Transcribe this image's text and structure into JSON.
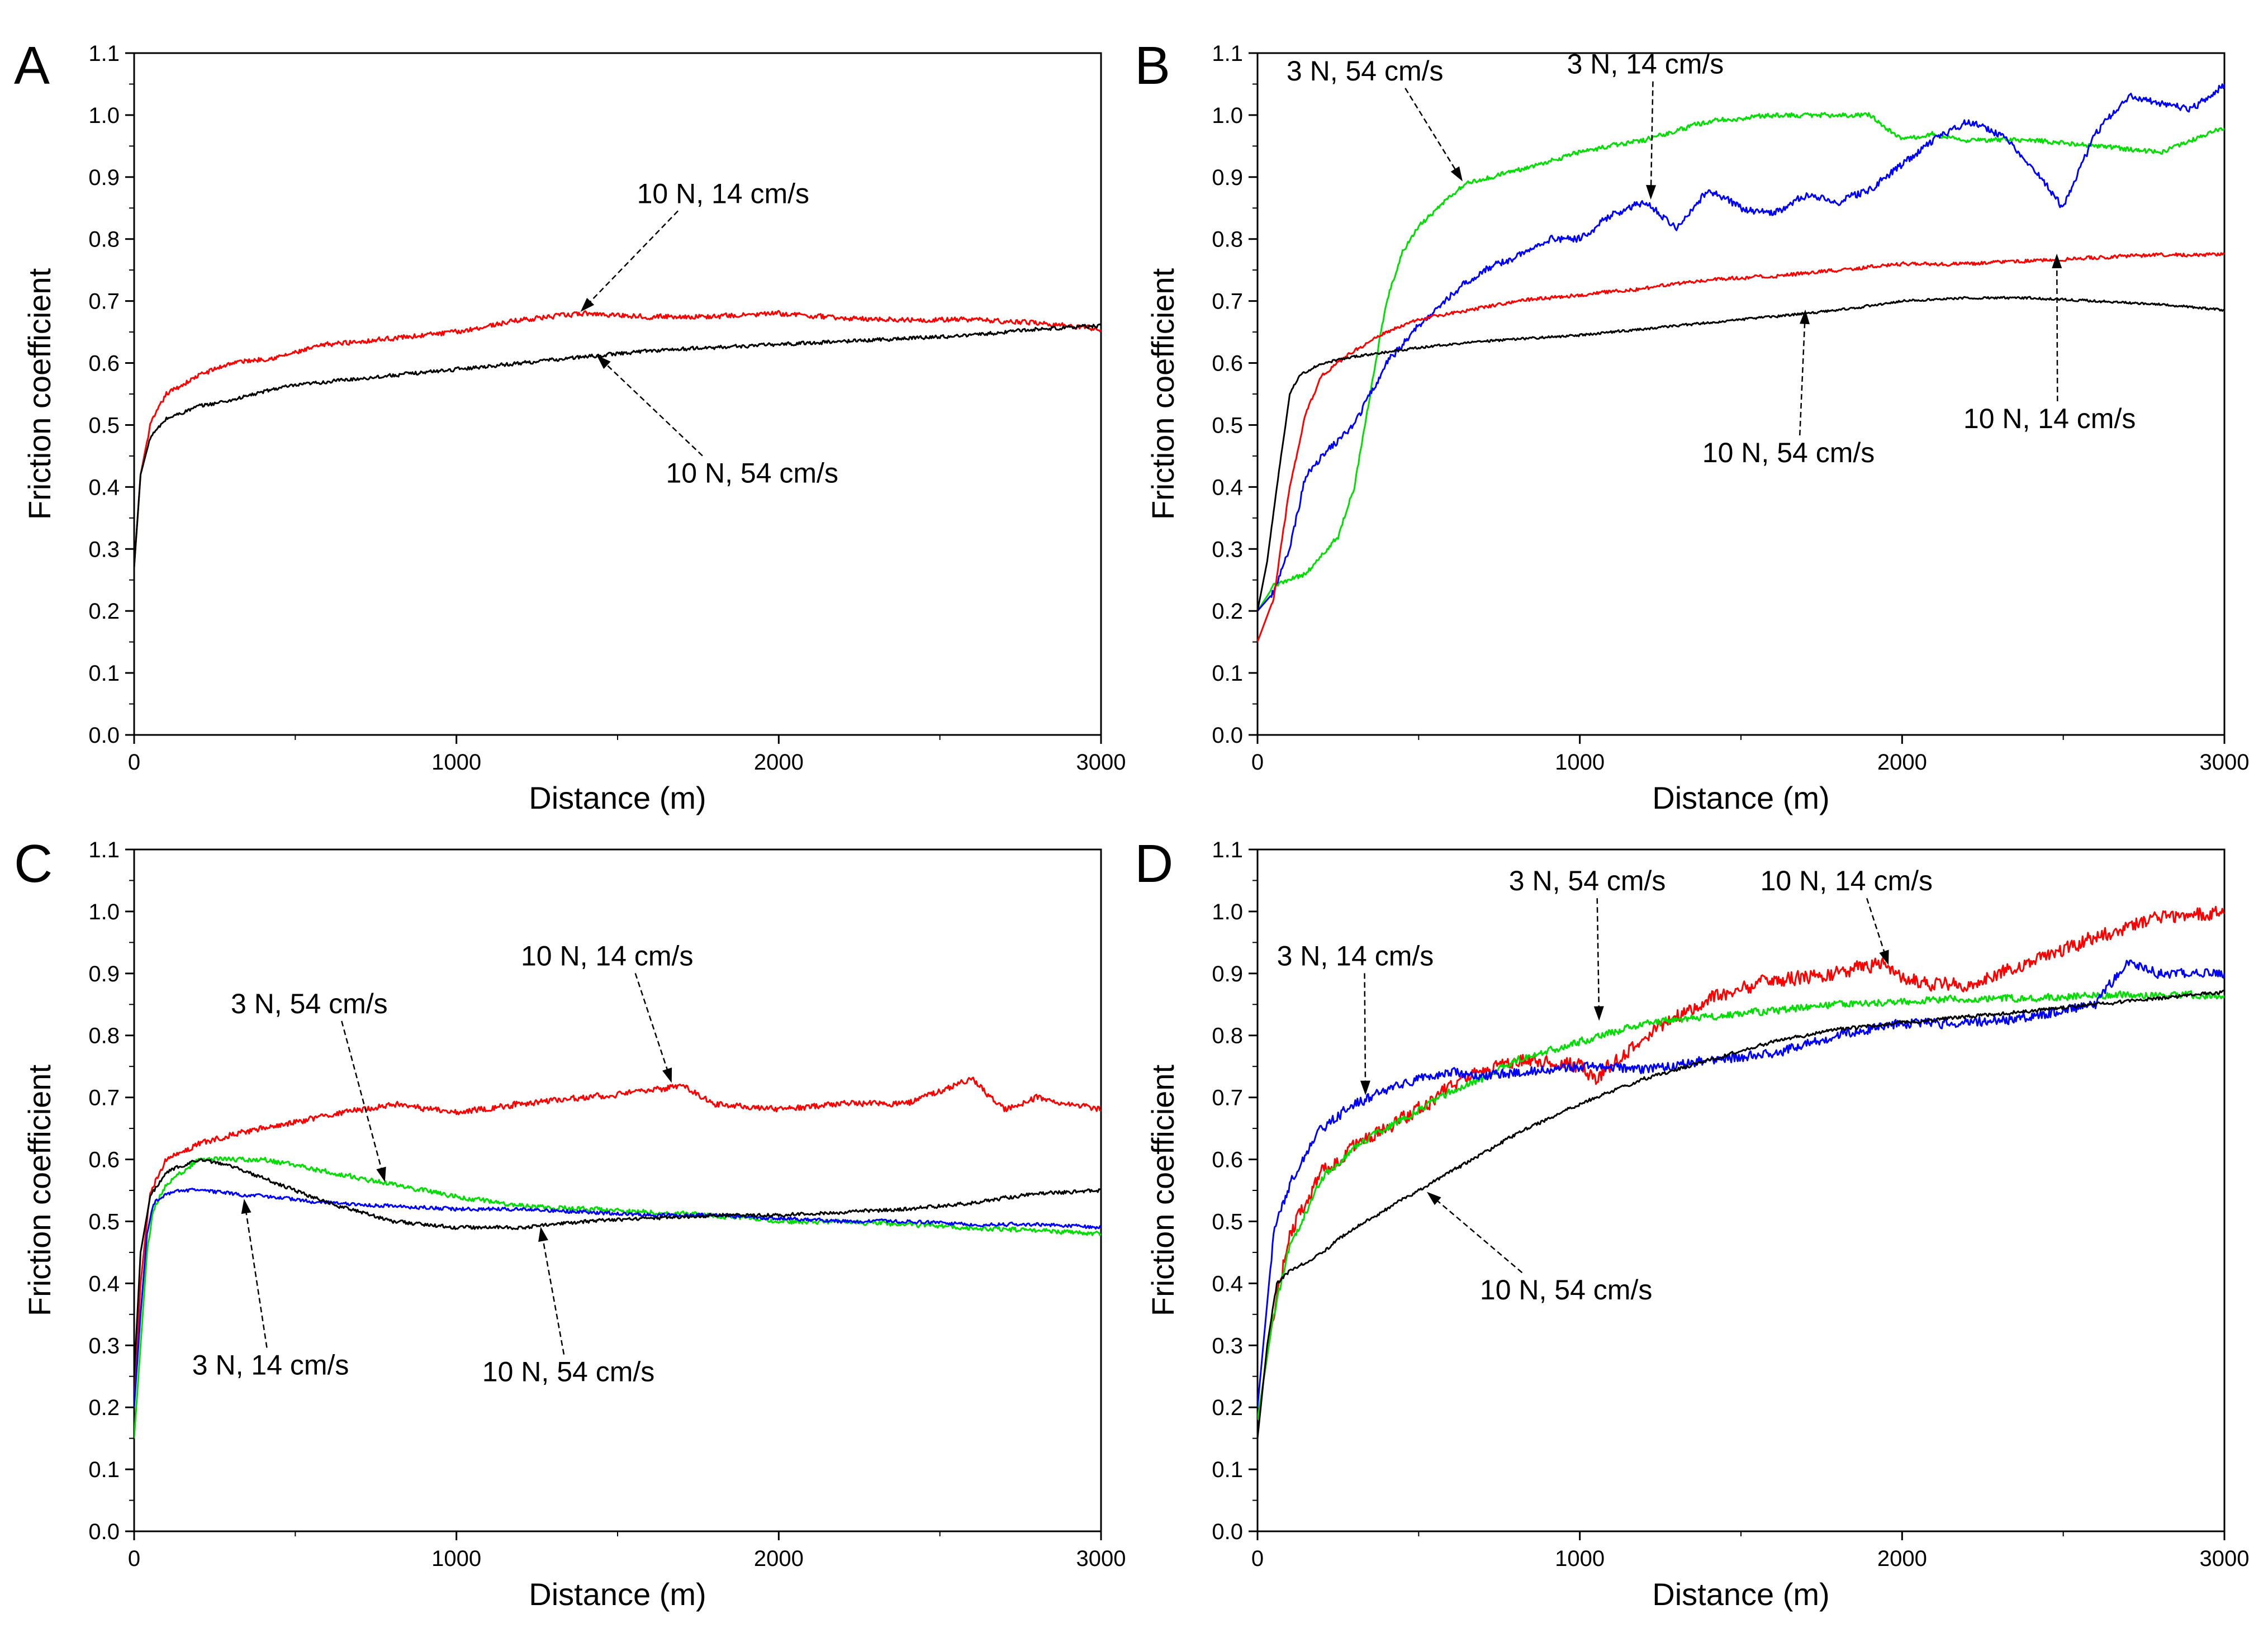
{
  "figure": {
    "colors": {
      "red": "#ff0000",
      "black": "#000000",
      "green": "#00dd00",
      "blue": "#0000ff"
    }
  },
  "chart_data": [
    {
      "panel": "A",
      "type": "line",
      "xlabel": "Distance (m)",
      "ylabel": "Friction coefficient",
      "xlim": [
        0,
        3000
      ],
      "ylim": [
        0.0,
        1.1
      ],
      "xticks": [
        "0",
        "1000",
        "2000",
        "3000"
      ],
      "yticks": [
        "0.0",
        "0.1",
        "0.2",
        "0.3",
        "0.4",
        "0.5",
        "0.6",
        "0.7",
        "0.8",
        "0.9",
        "1.0",
        "1.1"
      ],
      "series": [
        {
          "name": "10 N, 14 cm/s",
          "color": "#ff0000",
          "noise": 0.004,
          "x": [
            0,
            20,
            50,
            100,
            200,
            300,
            450,
            600,
            800,
            1000,
            1200,
            1400,
            1600,
            1800,
            2000,
            2200,
            2400,
            2600,
            2800,
            3000
          ],
          "y": [
            0.27,
            0.42,
            0.5,
            0.55,
            0.58,
            0.6,
            0.61,
            0.63,
            0.64,
            0.65,
            0.67,
            0.68,
            0.675,
            0.675,
            0.68,
            0.672,
            0.67,
            0.67,
            0.665,
            0.655
          ]
        },
        {
          "name": "10 N, 54 cm/s",
          "color": "#000000",
          "noise": 0.003,
          "x": [
            0,
            20,
            50,
            100,
            200,
            300,
            450,
            600,
            800,
            1000,
            1200,
            1400,
            1600,
            1800,
            2000,
            2200,
            2400,
            2600,
            2800,
            3000
          ],
          "y": [
            0.27,
            0.42,
            0.48,
            0.51,
            0.53,
            0.54,
            0.56,
            0.57,
            0.58,
            0.59,
            0.6,
            0.61,
            0.62,
            0.625,
            0.63,
            0.635,
            0.64,
            0.645,
            0.655,
            0.66
          ]
        }
      ],
      "annotations": [
        {
          "text": "10 N, 14 cm/s",
          "target": [
            1380,
            0.68
          ]
        },
        {
          "text": "10 N, 54 cm/s",
          "target": [
            1430,
            0.615
          ]
        }
      ]
    },
    {
      "panel": "B",
      "type": "line",
      "xlabel": "Distance (m)",
      "ylabel": "Friction coefficient",
      "xlim": [
        0,
        3000
      ],
      "ylim": [
        0.0,
        1.1
      ],
      "xticks": [
        "0",
        "1000",
        "2000",
        "3000"
      ],
      "yticks": [
        "0.0",
        "0.1",
        "0.2",
        "0.3",
        "0.4",
        "0.5",
        "0.6",
        "0.7",
        "0.8",
        "0.9",
        "1.0",
        "1.1"
      ],
      "series": [
        {
          "name": "3 N, 54 cm/s",
          "color": "#00dd00",
          "noise": 0.004,
          "x": [
            0,
            50,
            100,
            150,
            250,
            300,
            350,
            400,
            450,
            500,
            600,
            650,
            800,
            1000,
            1200,
            1400,
            1600,
            1800,
            1900,
            2000,
            2100,
            2200,
            2400,
            2600,
            2800,
            3000
          ],
          "y": [
            0.2,
            0.24,
            0.25,
            0.26,
            0.32,
            0.4,
            0.55,
            0.7,
            0.78,
            0.82,
            0.87,
            0.89,
            0.91,
            0.94,
            0.96,
            0.99,
            1.0,
            1.0,
            1.0,
            0.96,
            0.97,
            0.96,
            0.96,
            0.95,
            0.94,
            0.98
          ]
        },
        {
          "name": "3 N, 14 cm/s",
          "color": "#0000ff",
          "noise": 0.006,
          "x": [
            0,
            50,
            100,
            150,
            200,
            300,
            400,
            500,
            600,
            700,
            800,
            900,
            1000,
            1100,
            1200,
            1300,
            1400,
            1500,
            1600,
            1700,
            1800,
            1900,
            2000,
            2100,
            2200,
            2300,
            2400,
            2500,
            2600,
            2700,
            2800,
            2900,
            3000
          ],
          "y": [
            0.2,
            0.23,
            0.3,
            0.42,
            0.45,
            0.5,
            0.6,
            0.66,
            0.71,
            0.75,
            0.77,
            0.8,
            0.8,
            0.84,
            0.86,
            0.82,
            0.88,
            0.85,
            0.84,
            0.87,
            0.86,
            0.88,
            0.92,
            0.96,
            0.99,
            0.97,
            0.92,
            0.85,
            0.97,
            1.03,
            1.02,
            1.01,
            1.05
          ]
        },
        {
          "name": "10 N, 14 cm/s",
          "color": "#ff0000",
          "noise": 0.003,
          "x": [
            0,
            50,
            100,
            150,
            200,
            300,
            400,
            500,
            600,
            800,
            1000,
            1200,
            1400,
            1600,
            1800,
            2000,
            2200,
            2400,
            2600,
            2800,
            3000
          ],
          "y": [
            0.15,
            0.22,
            0.4,
            0.52,
            0.58,
            0.62,
            0.65,
            0.67,
            0.68,
            0.7,
            0.71,
            0.72,
            0.735,
            0.74,
            0.75,
            0.76,
            0.76,
            0.765,
            0.77,
            0.775,
            0.775
          ]
        },
        {
          "name": "10 N, 54 cm/s",
          "color": "#000000",
          "noise": 0.002,
          "x": [
            0,
            30,
            60,
            100,
            130,
            200,
            300,
            500,
            700,
            1000,
            1200,
            1400,
            1600,
            1800,
            2000,
            2200,
            2400,
            2600,
            2800,
            3000
          ],
          "y": [
            0.2,
            0.28,
            0.4,
            0.55,
            0.58,
            0.6,
            0.61,
            0.625,
            0.635,
            0.645,
            0.655,
            0.665,
            0.675,
            0.685,
            0.7,
            0.705,
            0.705,
            0.7,
            0.695,
            0.685
          ]
        }
      ],
      "annotations": [
        {
          "text": "3 N, 54 cm/s",
          "target": [
            640,
            0.89
          ]
        },
        {
          "text": "3 N, 14 cm/s",
          "target": [
            1220,
            0.86
          ]
        },
        {
          "text": "10 N, 14 cm/s",
          "target": [
            2480,
            0.78
          ]
        },
        {
          "text": "10 N, 54 cm/s",
          "target": [
            1700,
            0.69
          ]
        }
      ]
    },
    {
      "panel": "C",
      "type": "line",
      "xlabel": "Distance (m)",
      "ylabel": "Friction coefficient",
      "xlim": [
        0,
        3000
      ],
      "ylim": [
        0.0,
        1.1
      ],
      "xticks": [
        "0",
        "1000",
        "2000",
        "3000"
      ],
      "yticks": [
        "0.0",
        "0.1",
        "0.2",
        "0.3",
        "0.4",
        "0.5",
        "0.6",
        "0.7",
        "0.8",
        "0.9",
        "1.0",
        "1.1"
      ],
      "series": [
        {
          "name": "10 N, 14 cm/s",
          "color": "#ff0000",
          "noise": 0.005,
          "x": [
            0,
            20,
            50,
            100,
            200,
            300,
            400,
            600,
            800,
            1000,
            1200,
            1400,
            1600,
            1700,
            1800,
            2000,
            2200,
            2400,
            2600,
            2700,
            2800,
            3000
          ],
          "y": [
            0.2,
            0.4,
            0.55,
            0.6,
            0.625,
            0.64,
            0.65,
            0.67,
            0.69,
            0.675,
            0.69,
            0.7,
            0.71,
            0.72,
            0.69,
            0.68,
            0.69,
            0.69,
            0.73,
            0.68,
            0.7,
            0.68
          ]
        },
        {
          "name": "3 N, 54 cm/s",
          "color": "#00dd00",
          "noise": 0.004,
          "x": [
            0,
            20,
            40,
            60,
            100,
            150,
            200,
            300,
            400,
            500,
            600,
            800,
            1000,
            1200,
            1400,
            1600,
            1800,
            2000,
            2200,
            2400,
            2600,
            2800,
            3000
          ],
          "y": [
            0.15,
            0.3,
            0.45,
            0.52,
            0.56,
            0.58,
            0.6,
            0.6,
            0.6,
            0.59,
            0.58,
            0.56,
            0.54,
            0.525,
            0.52,
            0.515,
            0.51,
            0.5,
            0.5,
            0.495,
            0.49,
            0.485,
            0.48
          ]
        },
        {
          "name": "3 N, 14 cm/s",
          "color": "#0000ff",
          "noise": 0.003,
          "x": [
            0,
            20,
            40,
            60,
            100,
            150,
            200,
            300,
            400,
            600,
            800,
            1000,
            1200,
            1400,
            1600,
            1800,
            2000,
            2200,
            2400,
            2600,
            2800,
            3000
          ],
          "y": [
            0.2,
            0.35,
            0.48,
            0.53,
            0.545,
            0.55,
            0.55,
            0.545,
            0.54,
            0.53,
            0.525,
            0.52,
            0.52,
            0.515,
            0.51,
            0.51,
            0.505,
            0.5,
            0.5,
            0.495,
            0.495,
            0.49
          ]
        },
        {
          "name": "10 N, 54 cm/s",
          "color": "#000000",
          "noise": 0.003,
          "x": [
            0,
            20,
            50,
            100,
            200,
            300,
            400,
            600,
            800,
            1000,
            1200,
            1400,
            1600,
            1800,
            2000,
            2200,
            2400,
            2600,
            2800,
            3000
          ],
          "y": [
            0.25,
            0.45,
            0.54,
            0.58,
            0.6,
            0.59,
            0.57,
            0.53,
            0.5,
            0.49,
            0.49,
            0.5,
            0.505,
            0.51,
            0.51,
            0.515,
            0.52,
            0.53,
            0.545,
            0.55
          ]
        }
      ],
      "annotations": [
        {
          "text": "10 N, 14 cm/s",
          "target": [
            1670,
            0.72
          ]
        },
        {
          "text": "3 N, 54 cm/s",
          "target": [
            780,
            0.56
          ]
        },
        {
          "text": "3 N, 14 cm/s",
          "target": [
            340,
            0.54
          ]
        },
        {
          "text": "10 N, 54 cm/s",
          "target": [
            1260,
            0.495
          ]
        }
      ]
    },
    {
      "panel": "D",
      "type": "line",
      "xlabel": "Distance (m)",
      "ylabel": "Friction coefficient",
      "xlim": [
        0,
        3000
      ],
      "ylim": [
        0.0,
        1.1
      ],
      "xticks": [
        "0",
        "1000",
        "2000",
        "3000"
      ],
      "yticks": [
        "0.0",
        "0.1",
        "0.2",
        "0.3",
        "0.4",
        "0.5",
        "0.6",
        "0.7",
        "0.8",
        "0.9",
        "1.0",
        "1.1"
      ],
      "series": [
        {
          "name": "10 N, 14 cm/s",
          "color": "#ff0000",
          "noise": 0.012,
          "x": [
            0,
            50,
            100,
            200,
            300,
            400,
            500,
            600,
            800,
            1000,
            1050,
            1200,
            1400,
            1600,
            1800,
            1950,
            2000,
            2200,
            2400,
            2600,
            2800,
            3000
          ],
          "y": [
            0.18,
            0.35,
            0.48,
            0.58,
            0.62,
            0.65,
            0.68,
            0.72,
            0.76,
            0.75,
            0.73,
            0.8,
            0.86,
            0.89,
            0.9,
            0.92,
            0.89,
            0.88,
            0.92,
            0.96,
            0.99,
            1.0
          ]
        },
        {
          "name": "3 N, 54 cm/s",
          "color": "#00dd00",
          "noise": 0.006,
          "x": [
            0,
            50,
            100,
            200,
            300,
            400,
            500,
            600,
            700,
            800,
            1000,
            1200,
            1400,
            1600,
            1800,
            2000,
            2200,
            2400,
            2600,
            2800,
            3000
          ],
          "y": [
            0.18,
            0.35,
            0.46,
            0.57,
            0.62,
            0.65,
            0.68,
            0.71,
            0.73,
            0.76,
            0.79,
            0.82,
            0.83,
            0.84,
            0.85,
            0.855,
            0.86,
            0.86,
            0.865,
            0.865,
            0.865
          ]
        },
        {
          "name": "3 N, 14 cm/s",
          "color": "#0000ff",
          "noise": 0.008,
          "x": [
            0,
            50,
            100,
            150,
            200,
            300,
            400,
            500,
            600,
            700,
            800,
            1000,
            1200,
            1400,
            1600,
            1800,
            2000,
            2200,
            2400,
            2600,
            2700,
            2800,
            3000
          ],
          "y": [
            0.2,
            0.48,
            0.56,
            0.61,
            0.65,
            0.69,
            0.71,
            0.73,
            0.74,
            0.735,
            0.74,
            0.75,
            0.745,
            0.76,
            0.77,
            0.8,
            0.82,
            0.82,
            0.83,
            0.85,
            0.92,
            0.9,
            0.9
          ]
        },
        {
          "name": "10 N, 54 cm/s",
          "color": "#000000",
          "noise": 0.003,
          "x": [
            0,
            30,
            60,
            100,
            200,
            300,
            400,
            500,
            600,
            700,
            800,
            1000,
            1200,
            1400,
            1600,
            1800,
            2000,
            2200,
            2400,
            2600,
            2800,
            3000
          ],
          "y": [
            0.15,
            0.3,
            0.4,
            0.42,
            0.45,
            0.49,
            0.52,
            0.55,
            0.58,
            0.61,
            0.64,
            0.69,
            0.73,
            0.76,
            0.79,
            0.81,
            0.82,
            0.83,
            0.84,
            0.85,
            0.86,
            0.87
          ]
        }
      ],
      "annotations": [
        {
          "text": "3 N, 54 cm/s",
          "target": [
            1060,
            0.82
          ]
        },
        {
          "text": "10 N, 14 cm/s",
          "target": [
            1960,
            0.91
          ]
        },
        {
          "text": "3 N, 14 cm/s",
          "target": [
            335,
            0.7
          ]
        },
        {
          "text": "10 N, 54 cm/s",
          "target": [
            520,
            0.55
          ]
        }
      ]
    }
  ]
}
